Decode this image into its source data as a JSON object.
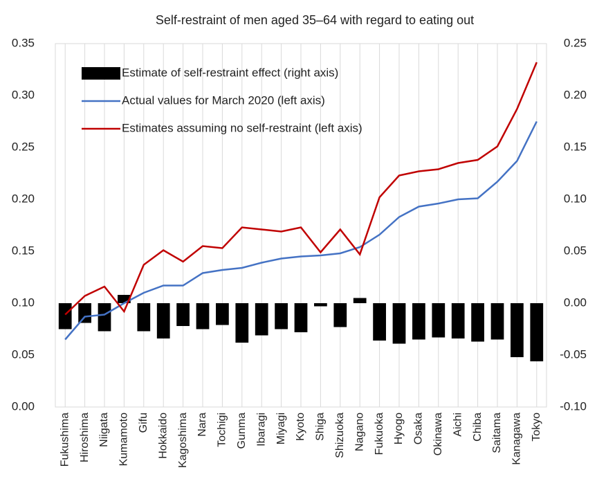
{
  "chart_data": {
    "type": "bar_line_dual_axis",
    "title": "Self-restraint of men aged 35–64 with regard to eating out",
    "categories": [
      "Fukushima",
      "Hiroshima",
      "Niigata",
      "Kumamoto",
      "Gifu",
      "Hokkaido",
      "Kagoshima",
      "Nara",
      "Tochigi",
      "Gunma",
      "Ibaragi",
      "Miyagi",
      "Kyoto",
      "Shiga",
      "Shizuoka",
      "Nagano",
      "Fukuoka",
      "Hyogo",
      "Osaka",
      "Okinawa",
      "Aichi",
      "Chiba",
      "Saitama",
      "Kanagawa",
      "Tokyo"
    ],
    "series": [
      {
        "name": "Estimate of self-restraint effect (right axis)",
        "type": "bar",
        "axis": "y2",
        "color": "#000000",
        "values": [
          -0.025,
          -0.019,
          -0.027,
          0.008,
          -0.027,
          -0.034,
          -0.022,
          -0.025,
          -0.021,
          -0.038,
          -0.031,
          -0.025,
          -0.028,
          -0.003,
          -0.023,
          0.005,
          -0.036,
          -0.039,
          -0.035,
          -0.033,
          -0.034,
          -0.037,
          -0.035,
          -0.052,
          -0.056
        ]
      },
      {
        "name": "Actual values for March 2020 (left axis)",
        "type": "line",
        "color": "#4472c4",
        "values": [
          0.065,
          0.087,
          0.089,
          0.1,
          0.11,
          0.117,
          0.117,
          0.129,
          0.132,
          0.134,
          0.139,
          0.143,
          0.145,
          0.146,
          0.148,
          0.154,
          0.166,
          0.183,
          0.193,
          0.196,
          0.2,
          0.201,
          0.217,
          0.237,
          0.275
        ]
      },
      {
        "name": "Estimates assuming no self-restraint (left axis)",
        "type": "line",
        "color": "#c00000",
        "values": [
          0.089,
          0.107,
          0.116,
          0.092,
          0.137,
          0.151,
          0.14,
          0.155,
          0.153,
          0.173,
          0.171,
          0.169,
          0.173,
          0.149,
          0.171,
          0.147,
          0.202,
          0.223,
          0.227,
          0.229,
          0.235,
          0.238,
          0.251,
          0.287,
          0.332
        ]
      }
    ],
    "ylim": [
      0,
      0.35
    ],
    "yticks": [
      {
        "value": 0,
        "label": "0.00"
      },
      {
        "value": 0.05,
        "label": "0.05"
      },
      {
        "value": 0.1,
        "label": "0.10"
      },
      {
        "value": 0.15,
        "label": "0.15"
      },
      {
        "value": 0.2,
        "label": "0.20"
      },
      {
        "value": 0.25,
        "label": "0.25"
      },
      {
        "value": 0.3,
        "label": "0.30"
      },
      {
        "value": 0.35,
        "label": "0.35"
      }
    ],
    "y2lim": [
      -0.1,
      0.25
    ],
    "y2ticks": [
      {
        "value": -0.1,
        "label": "-0.10"
      },
      {
        "value": -0.05,
        "label": "-0.05"
      },
      {
        "value": 0,
        "label": "0.00"
      },
      {
        "value": 0.05,
        "label": "0.05"
      },
      {
        "value": 0.1,
        "label": "0.10"
      },
      {
        "value": 0.15,
        "label": "0.15"
      },
      {
        "value": 0.2,
        "label": "0.20"
      },
      {
        "value": 0.25,
        "label": "0.25"
      }
    ],
    "grid": true,
    "legend": "top-left"
  }
}
